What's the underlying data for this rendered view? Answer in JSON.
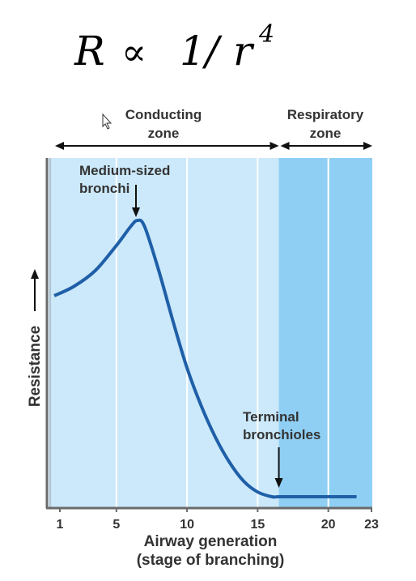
{
  "formula": {
    "lhs": "R",
    "rel": "∝",
    "numer": "1/",
    "var": "r",
    "exp": "4"
  },
  "chart_data": {
    "type": "line",
    "xlabel_line1": "Airway generation",
    "xlabel_line2": "(stage of branching)",
    "ylabel": "Resistance",
    "xlim": [
      0.5,
      23
    ],
    "x_ticks": [
      1,
      5,
      10,
      15,
      20,
      23
    ],
    "grid_x": [
      5,
      10,
      15,
      20
    ],
    "series": [
      {
        "x": [
          0.6,
          2,
          3.5,
          5,
          6,
          6.5,
          7,
          8,
          9,
          10,
          11,
          12,
          13,
          14,
          15,
          16,
          16.5,
          18,
          20,
          22
        ],
        "y": [
          0.64,
          0.67,
          0.72,
          0.8,
          0.86,
          0.88,
          0.86,
          0.72,
          0.56,
          0.41,
          0.29,
          0.19,
          0.11,
          0.05,
          0.015,
          0.0,
          0.0,
          0.0,
          0.0,
          0.0
        ]
      }
    ],
    "zones": [
      {
        "label_line1": "Conducting",
        "label_line2": "zone",
        "from": 0.5,
        "to": 16.5,
        "color": "#cbe9fa"
      },
      {
        "label_line1": "Respiratory",
        "label_line2": "zone",
        "from": 16.5,
        "to": 23,
        "color": "#8fcff4"
      }
    ],
    "annotations": [
      {
        "line1": "Medium-sized",
        "line2": "bronchi",
        "x": 6.5
      },
      {
        "line1": "Terminal",
        "line2": "bronchioles",
        "x": 16.5
      }
    ],
    "colors": {
      "curve": "#1f5fa8",
      "axis": "#6a6a6a",
      "grid": "#ffffff",
      "text": "#333333"
    }
  }
}
